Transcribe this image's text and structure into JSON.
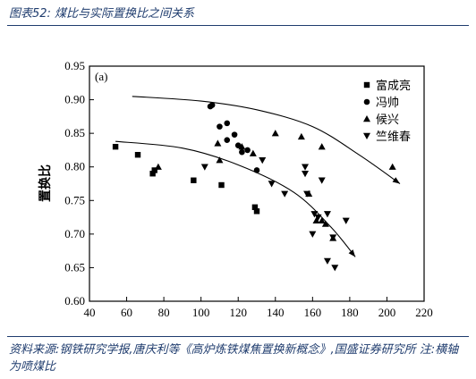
{
  "figure": {
    "title": "图表52:  煤比与实际置换比之间关系",
    "source": "资料来源:钢铁研究学报,唐庆利等《高炉炼铁煤焦置换新概念》,国盛证券研究所 注:横轴为喷煤比"
  },
  "chart_data": {
    "type": "scatter",
    "panel_label": "(a)",
    "title": "",
    "xlabel": "",
    "ylabel": "置换比",
    "xlim": [
      40,
      220
    ],
    "ylim": [
      0.6,
      0.95
    ],
    "xticks": [
      40,
      60,
      80,
      100,
      120,
      140,
      160,
      180,
      200,
      220
    ],
    "yticks": [
      0.6,
      0.65,
      0.7,
      0.75,
      0.8,
      0.85,
      0.9,
      0.95
    ],
    "grid": false,
    "legend_position": "top-right",
    "series": [
      {
        "name": "富成亮",
        "marker": "square",
        "points": [
          [
            54,
            0.83
          ],
          [
            66,
            0.818
          ],
          [
            74,
            0.79
          ],
          [
            75,
            0.795
          ],
          [
            96,
            0.78
          ],
          [
            111,
            0.773
          ],
          [
            129,
            0.74
          ],
          [
            130,
            0.734
          ]
        ]
      },
      {
        "name": "冯帅",
        "marker": "circle",
        "points": [
          [
            105,
            0.89
          ],
          [
            106,
            0.892
          ],
          [
            110,
            0.86
          ],
          [
            114,
            0.865
          ],
          [
            114,
            0.84
          ],
          [
            118,
            0.848
          ],
          [
            120,
            0.832
          ],
          [
            122,
            0.822
          ],
          [
            125,
            0.825
          ],
          [
            130,
            0.795
          ]
        ]
      },
      {
        "name": "候兴",
        "marker": "triangle-up",
        "points": [
          [
            77,
            0.8
          ],
          [
            109,
            0.835
          ],
          [
            110,
            0.81
          ],
          [
            122,
            0.83
          ],
          [
            128,
            0.82
          ],
          [
            140,
            0.85
          ],
          [
            154,
            0.845
          ],
          [
            165,
            0.83
          ],
          [
            158,
            0.76
          ],
          [
            162,
            0.72
          ],
          [
            165,
            0.72
          ],
          [
            167,
            0.715
          ],
          [
            171,
            0.694
          ],
          [
            203,
            0.8
          ]
        ]
      },
      {
        "name": "竺维春",
        "marker": "triangle-down",
        "points": [
          [
            102,
            0.8
          ],
          [
            133,
            0.81
          ],
          [
            138,
            0.775
          ],
          [
            145,
            0.76
          ],
          [
            156,
            0.8
          ],
          [
            156,
            0.79
          ],
          [
            157,
            0.76
          ],
          [
            165,
            0.78
          ],
          [
            161,
            0.73
          ],
          [
            163,
            0.725
          ],
          [
            160,
            0.7
          ],
          [
            168,
            0.73
          ],
          [
            171,
            0.695
          ],
          [
            178,
            0.72
          ],
          [
            168,
            0.66
          ],
          [
            172,
            0.65
          ]
        ]
      }
    ],
    "curves": [
      {
        "points": [
          [
            63,
            0.905
          ],
          [
            100,
            0.898
          ],
          [
            130,
            0.885
          ],
          [
            160,
            0.86
          ],
          [
            185,
            0.818
          ],
          [
            207,
            0.775
          ]
        ]
      },
      {
        "points": [
          [
            54,
            0.838
          ],
          [
            90,
            0.828
          ],
          [
            120,
            0.803
          ],
          [
            150,
            0.762
          ],
          [
            170,
            0.71
          ],
          [
            183,
            0.666
          ]
        ]
      }
    ]
  }
}
